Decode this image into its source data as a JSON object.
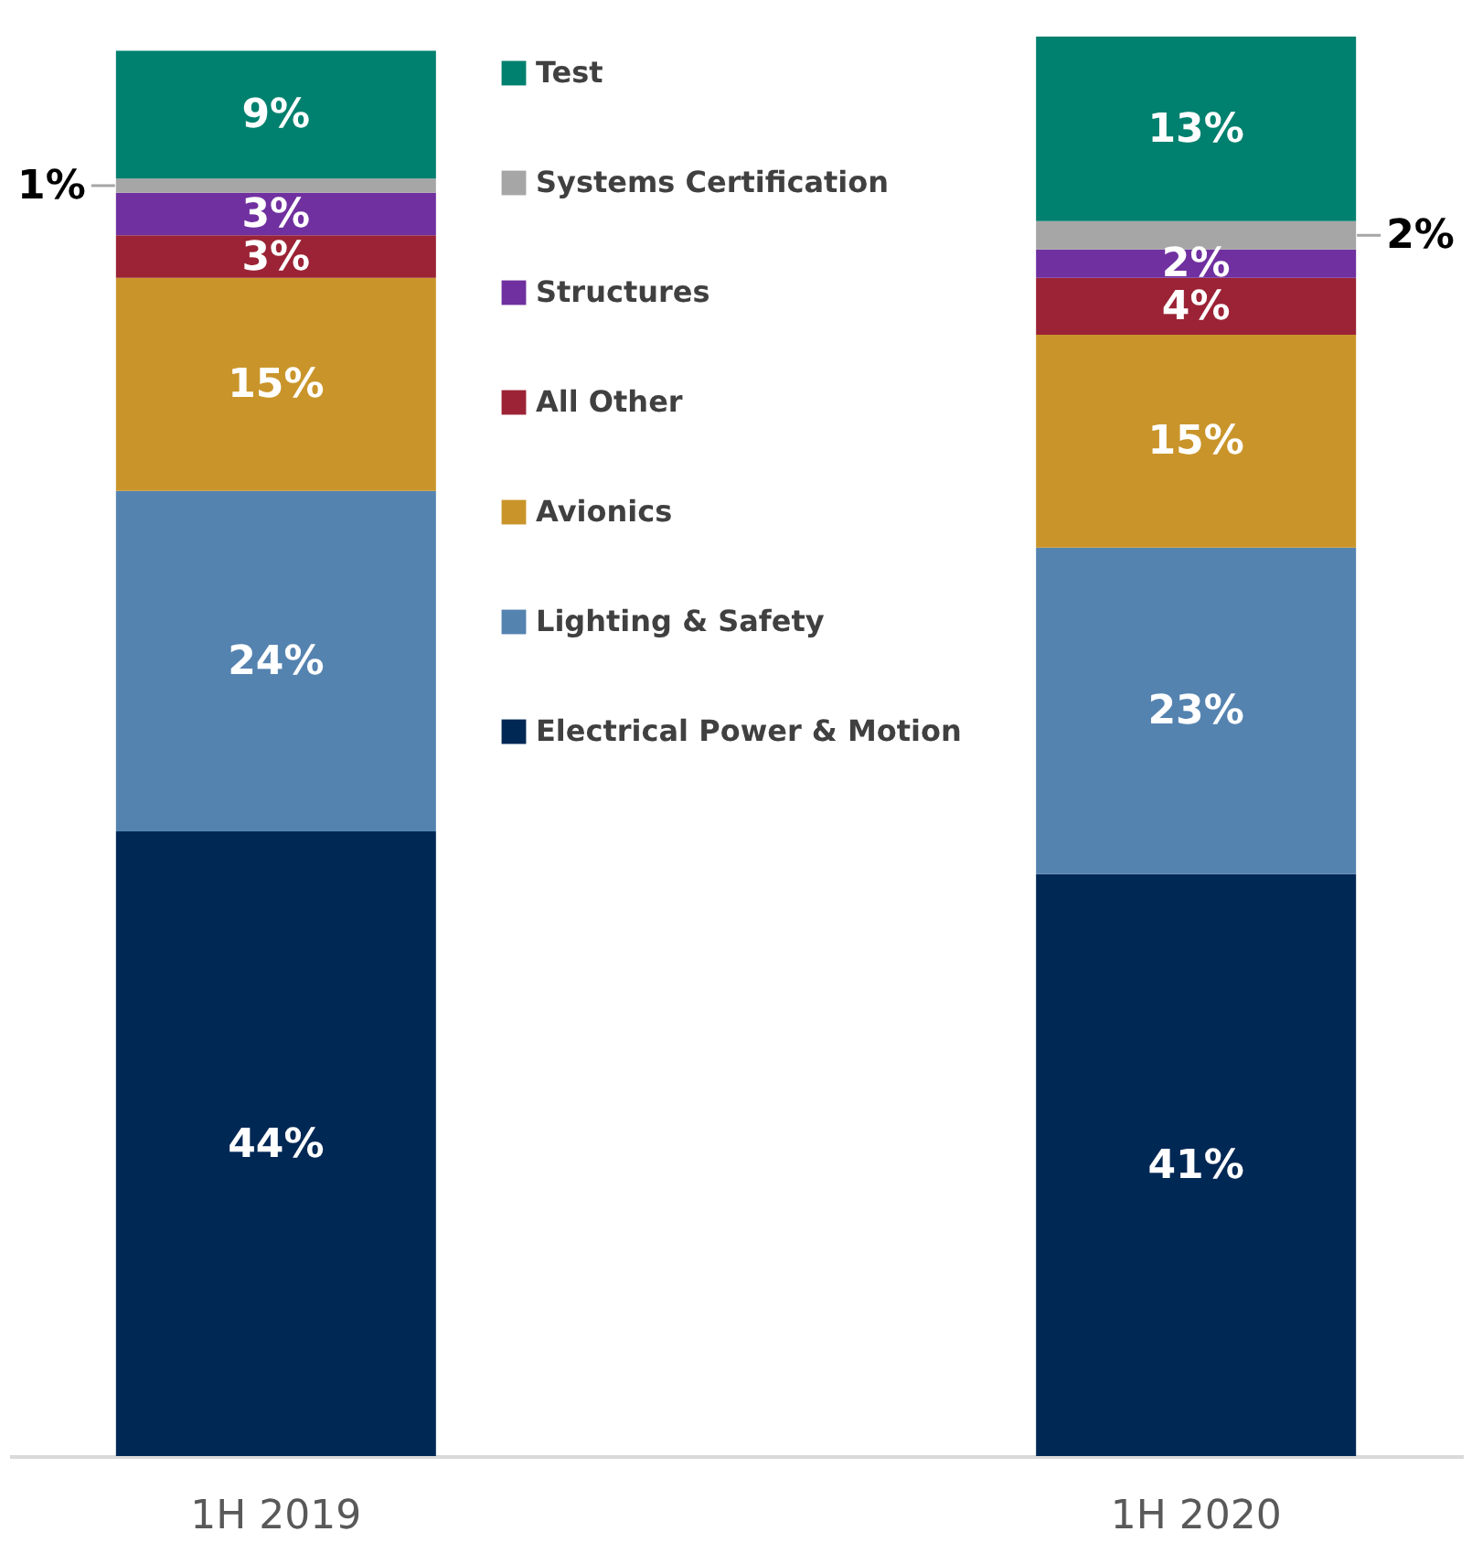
{
  "chart_data": {
    "type": "bar",
    "stacked": true,
    "categories": [
      "1H 2019",
      "1H 2020"
    ],
    "tick_labels": "x",
    "grid": false,
    "legend": "center",
    "series": [
      {
        "name": "Electrical Power & Motion",
        "color": "#002855",
        "values": [
          44,
          41
        ],
        "value_labels": [
          "44%",
          "41%"
        ]
      },
      {
        "name": "Lighting & Safety",
        "color": "#5583b0",
        "values": [
          24,
          23
        ],
        "value_labels": [
          "24%",
          "23%"
        ]
      },
      {
        "name": "Avionics",
        "color": "#c9952b",
        "values": [
          15,
          15
        ],
        "value_labels": [
          "15%",
          "15%"
        ]
      },
      {
        "name": "All Other",
        "color": "#9b2335",
        "values": [
          3,
          4
        ],
        "value_labels": [
          "3%",
          "4%"
        ]
      },
      {
        "name": "Structures",
        "color": "#7030a0",
        "values": [
          3,
          2
        ],
        "value_labels": [
          "3%",
          "2%"
        ]
      },
      {
        "name": "Systems Certification",
        "color": "#a6a6a6",
        "values": [
          1,
          2
        ],
        "value_labels": [
          "1%",
          "2%"
        ]
      },
      {
        "name": "Test",
        "color": "#00806e",
        "values": [
          9,
          13
        ],
        "value_labels": [
          "9%",
          "13%"
        ]
      }
    ]
  }
}
